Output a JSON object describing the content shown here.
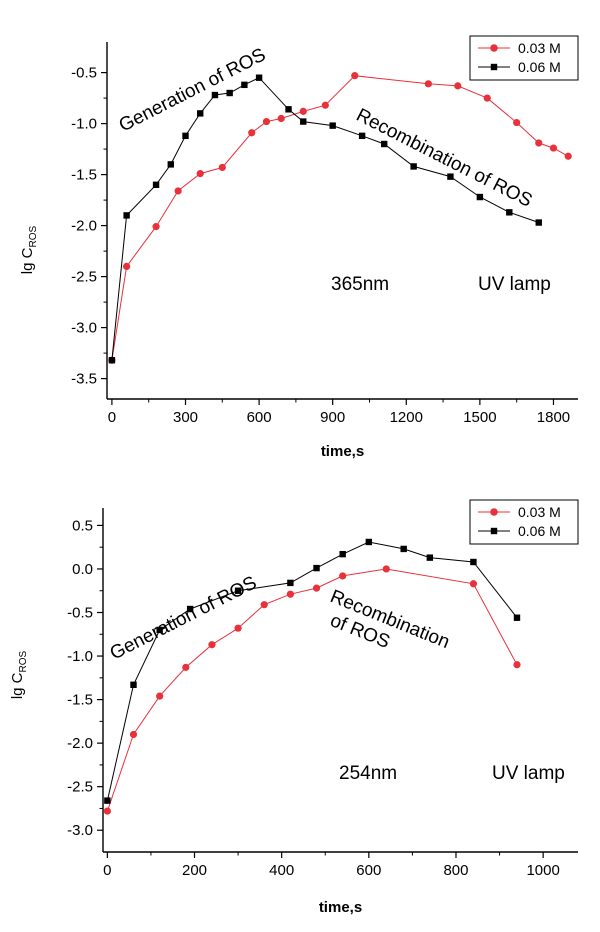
{
  "chart_data": [
    {
      "type": "line",
      "x_label": "time,s",
      "y_label_main": "lg C",
      "y_label_sub": "ROS",
      "xlim": [
        -20,
        1900
      ],
      "ylim": [
        -3.7,
        -0.2
      ],
      "x_ticks": [
        0,
        300,
        600,
        900,
        1200,
        1500,
        1800
      ],
      "y_ticks": [
        -0.5,
        -1.0,
        -1.5,
        -2.0,
        -2.5,
        -3.0,
        -3.5
      ],
      "x_tick_labels": [
        "0",
        "300",
        "600",
        "900",
        "1200",
        "1500",
        "1800"
      ],
      "y_tick_labels": [
        "-0.5",
        "-1.0",
        "-1.5",
        "-2.0",
        "-2.5",
        "-3.0",
        "-3.5"
      ],
      "annotations": {
        "generation": "Generation of ROS",
        "recombination": "Recombination of ROS",
        "wavelength": "365nm",
        "lamp": "UV lamp"
      },
      "legend_position": "top-right",
      "series": [
        {
          "name": "0.03 M",
          "color": "#e8313a",
          "marker": "circle",
          "x": [
            0,
            60,
            180,
            270,
            360,
            450,
            570,
            630,
            690,
            780,
            870,
            990,
            1290,
            1410,
            1530,
            1650,
            1740,
            1800,
            1860
          ],
          "y": [
            -3.32,
            -2.4,
            -2.01,
            -1.66,
            -1.49,
            -1.43,
            -1.09,
            -0.98,
            -0.95,
            -0.88,
            -0.82,
            -0.53,
            -0.61,
            -0.63,
            -0.75,
            -0.99,
            -1.19,
            -1.24,
            -1.32
          ]
        },
        {
          "name": "0.06 M",
          "color": "#000000",
          "marker": "square",
          "x": [
            0,
            60,
            180,
            240,
            300,
            360,
            420,
            480,
            540,
            600,
            720,
            780,
            900,
            1020,
            1110,
            1230,
            1380,
            1500,
            1620,
            1740
          ],
          "y": [
            -3.32,
            -1.9,
            -1.6,
            -1.4,
            -1.12,
            -0.9,
            -0.72,
            -0.7,
            -0.62,
            -0.55,
            -0.86,
            -0.98,
            -1.02,
            -1.12,
            -1.2,
            -1.42,
            -1.52,
            -1.72,
            -1.87,
            -1.97
          ]
        }
      ]
    },
    {
      "type": "line",
      "x_label": "time,s",
      "y_label_main": "lg C",
      "y_label_sub": "ROS",
      "xlim": [
        -10,
        1080
      ],
      "ylim": [
        -3.25,
        0.7
      ],
      "x_ticks": [
        0,
        200,
        400,
        600,
        800,
        1000
      ],
      "y_ticks": [
        0.5,
        0.0,
        -0.5,
        -1.0,
        -1.5,
        -2.0,
        -2.5,
        -3.0
      ],
      "x_tick_labels": [
        "0",
        "200",
        "400",
        "600",
        "800",
        "1000"
      ],
      "y_tick_labels": [
        "0.5",
        "0.0",
        "-0.5",
        "-1.0",
        "-1.5",
        "-2.0",
        "-2.5",
        "-3.0"
      ],
      "annotations": {
        "generation": "Generation of ROS",
        "recombination_line1": "Recombination",
        "recombination_line2": "of ROS",
        "wavelength": "254nm",
        "lamp": "UV lamp"
      },
      "legend_position": "top-right",
      "series": [
        {
          "name": "0.03 M",
          "color": "#e8313a",
          "marker": "circle",
          "x": [
            0,
            60,
            120,
            180,
            240,
            300,
            360,
            420,
            480,
            540,
            640,
            840,
            940
          ],
          "y": [
            -2.78,
            -1.9,
            -1.46,
            -1.13,
            -0.87,
            -0.68,
            -0.41,
            -0.29,
            -0.22,
            -0.08,
            0.0,
            -0.17,
            -1.1
          ]
        },
        {
          "name": "0.06 M",
          "color": "#000000",
          "marker": "square",
          "x": [
            0,
            60,
            120,
            190,
            300,
            420,
            480,
            540,
            600,
            680,
            740,
            840,
            940
          ],
          "y": [
            -2.66,
            -1.33,
            -0.7,
            -0.46,
            -0.25,
            -0.16,
            0.01,
            0.17,
            0.31,
            0.23,
            0.13,
            0.08,
            -0.56
          ]
        }
      ]
    }
  ]
}
